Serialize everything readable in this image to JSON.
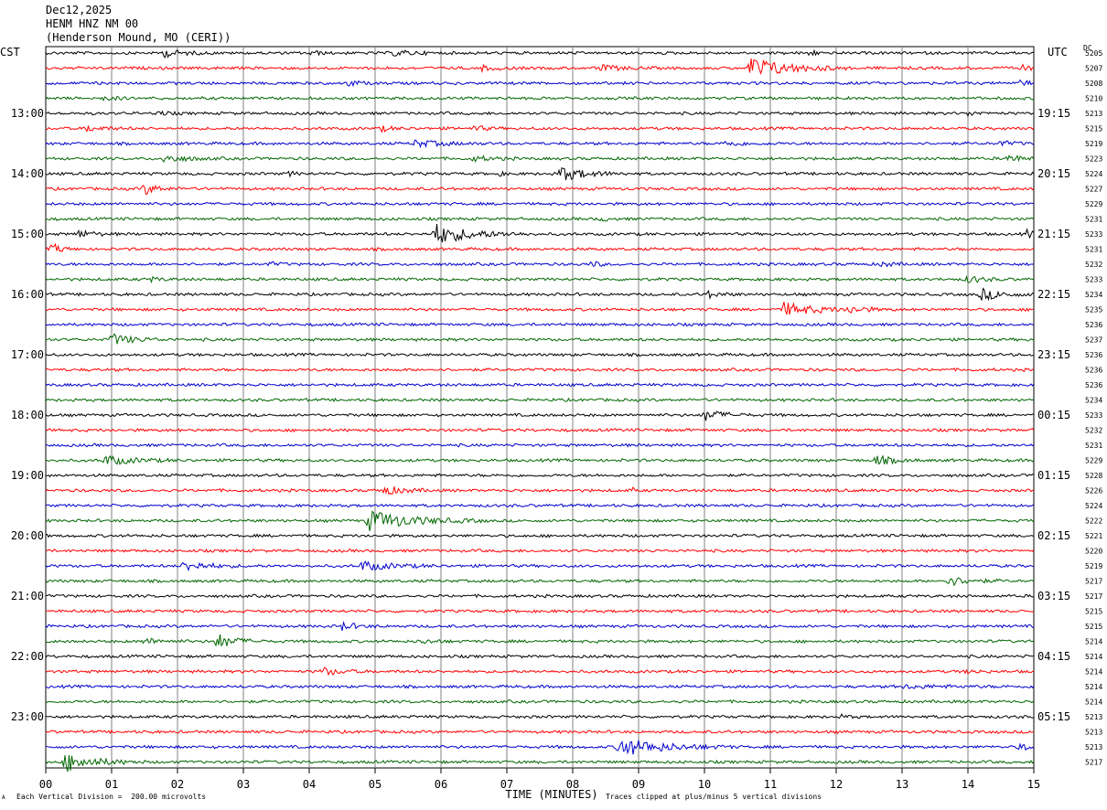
{
  "header": {
    "date": "Dec12,2025",
    "station": "HENM HNZ NM 00",
    "location": "(Henderson Mound, MO (CERI))"
  },
  "left_zone_label": "CST",
  "right_zone_label": "UTC",
  "dc_label": "DC",
  "footer": {
    "scale_note": "Each Vertical Division =  200.00 microvolts",
    "clip_note": "Traces clipped at plus/minus 5 vertical divisions",
    "corner_mark": "A"
  },
  "colors": {
    "black": "#000000",
    "red": "#ff0000",
    "blue": "#0000cc",
    "green": "#006600",
    "grid": "#808080"
  },
  "chart_data": {
    "type": "line",
    "xlabel": "TIME (MINUTES)",
    "x_ticks": [
      "00",
      "01",
      "02",
      "03",
      "04",
      "05",
      "06",
      "07",
      "08",
      "09",
      "10",
      "11",
      "12",
      "13",
      "14",
      "15"
    ],
    "xlim": [
      0,
      15
    ],
    "left_hour_labels": [
      "13:00",
      "14:00",
      "15:00",
      "16:00",
      "17:00",
      "18:00",
      "19:00",
      "20:00",
      "21:00",
      "22:00",
      "23:00"
    ],
    "right_hour_labels": [
      "19:15",
      "20:15",
      "21:15",
      "22:15",
      "23:15",
      "00:15",
      "01:15",
      "02:15",
      "03:15",
      "04:15",
      "05:15"
    ],
    "trace_colors": [
      "black",
      "red",
      "blue",
      "green"
    ],
    "dc_offsets": [
      "5205",
      "5207",
      "5208",
      "5210",
      "5213",
      "5215",
      "5219",
      "5223",
      "5224",
      "5227",
      "5229",
      "5231",
      "5233",
      "5231",
      "5232",
      "5233",
      "5234",
      "5235",
      "5236",
      "5237",
      "5236",
      "5236",
      "5236",
      "5234",
      "5233",
      "5232",
      "5231",
      "5229",
      "5228",
      "5226",
      "5224",
      "5222",
      "5221",
      "5220",
      "5219",
      "5217",
      "5217",
      "5215",
      "5215",
      "5214",
      "5214",
      "5214",
      "5214",
      "5214",
      "5213",
      "5213",
      "5213",
      "5217"
    ],
    "events": [
      {
        "trace": 0,
        "minute": 1.8,
        "amp": 4,
        "dur": 0.5
      },
      {
        "trace": 0,
        "minute": 5.3,
        "amp": 3,
        "dur": 0.5
      },
      {
        "trace": 0,
        "minute": 11.6,
        "amp": 3,
        "dur": 0.2
      },
      {
        "trace": 0,
        "minute": 4.0,
        "amp": 2.5,
        "dur": 0.3
      },
      {
        "trace": 1,
        "minute": 10.7,
        "amp": 12,
        "dur": 1.0
      },
      {
        "trace": 1,
        "minute": 8.4,
        "amp": 3,
        "dur": 0.6
      },
      {
        "trace": 1,
        "minute": 14.8,
        "amp": 3,
        "dur": 0.3
      },
      {
        "trace": 1,
        "minute": 6.6,
        "amp": 2.5,
        "dur": 0.5
      },
      {
        "trace": 2,
        "minute": 4.6,
        "amp": 3,
        "dur": 0.3
      },
      {
        "trace": 2,
        "minute": 14.8,
        "amp": 3,
        "dur": 0.3
      },
      {
        "trace": 3,
        "minute": 0.9,
        "amp": 2.5,
        "dur": 0.3
      },
      {
        "trace": 4,
        "minute": 1.7,
        "amp": 2,
        "dur": 0.3
      },
      {
        "trace": 4,
        "minute": 14.0,
        "amp": 2,
        "dur": 0.3
      },
      {
        "trace": 5,
        "minute": 0.6,
        "amp": 3,
        "dur": 0.5
      },
      {
        "trace": 5,
        "minute": 6.5,
        "amp": 3,
        "dur": 0.3
      },
      {
        "trace": 5,
        "minute": 5.1,
        "amp": 2.5,
        "dur": 0.3
      },
      {
        "trace": 6,
        "minute": 5.6,
        "amp": 3.5,
        "dur": 0.8
      },
      {
        "trace": 6,
        "minute": 10.3,
        "amp": 2.5,
        "dur": 0.6
      },
      {
        "trace": 6,
        "minute": 14.5,
        "amp": 2.5,
        "dur": 0.3
      },
      {
        "trace": 7,
        "minute": 1.8,
        "amp": 4,
        "dur": 0.6
      },
      {
        "trace": 7,
        "minute": 14.6,
        "amp": 4,
        "dur": 0.4
      },
      {
        "trace": 7,
        "minute": 6.5,
        "amp": 2.5,
        "dur": 0.5
      },
      {
        "trace": 8,
        "minute": 7.8,
        "amp": 8,
        "dur": 0.7
      },
      {
        "trace": 8,
        "minute": 3.7,
        "amp": 2,
        "dur": 0.2
      },
      {
        "trace": 8,
        "minute": 6.9,
        "amp": 2,
        "dur": 0.1
      },
      {
        "trace": 9,
        "minute": 1.5,
        "amp": 6,
        "dur": 0.4
      },
      {
        "trace": 11,
        "minute": 8.4,
        "amp": 2,
        "dur": 0.3
      },
      {
        "trace": 12,
        "minute": 5.9,
        "amp": 11,
        "dur": 1.0
      },
      {
        "trace": 12,
        "minute": 0.5,
        "amp": 4,
        "dur": 0.4
      },
      {
        "trace": 12,
        "minute": 14.9,
        "amp": 4,
        "dur": 0.2
      },
      {
        "trace": 13,
        "minute": 0.1,
        "amp": 5,
        "dur": 0.3
      },
      {
        "trace": 14,
        "minute": 8.3,
        "amp": 3,
        "dur": 0.2
      },
      {
        "trace": 14,
        "minute": 12.7,
        "amp": 2.5,
        "dur": 0.3
      },
      {
        "trace": 14,
        "minute": 3.4,
        "amp": 2,
        "dur": 0.2
      },
      {
        "trace": 15,
        "minute": 14.0,
        "amp": 4,
        "dur": 0.4
      },
      {
        "trace": 15,
        "minute": 1.6,
        "amp": 2,
        "dur": 0.3
      },
      {
        "trace": 16,
        "minute": 14.2,
        "amp": 6,
        "dur": 0.6
      },
      {
        "trace": 16,
        "minute": 10.0,
        "amp": 4,
        "dur": 0.4
      },
      {
        "trace": 17,
        "minute": 11.2,
        "amp": 7,
        "dur": 0.9
      },
      {
        "trace": 17,
        "minute": 12.2,
        "amp": 3,
        "dur": 0.5
      },
      {
        "trace": 19,
        "minute": 1.0,
        "amp": 6,
        "dur": 0.6
      },
      {
        "trace": 24,
        "minute": 10.0,
        "amp": 6,
        "dur": 0.5
      },
      {
        "trace": 27,
        "minute": 0.9,
        "amp": 5,
        "dur": 0.8
      },
      {
        "trace": 27,
        "minute": 12.6,
        "amp": 5,
        "dur": 0.5
      },
      {
        "trace": 29,
        "minute": 5.1,
        "amp": 5,
        "dur": 0.6
      },
      {
        "trace": 29,
        "minute": 8.9,
        "amp": 4,
        "dur": 0.05
      },
      {
        "trace": 31,
        "minute": 4.9,
        "amp": 11,
        "dur": 1.2
      },
      {
        "trace": 34,
        "minute": 2.1,
        "amp": 5,
        "dur": 0.7
      },
      {
        "trace": 34,
        "minute": 4.8,
        "amp": 5,
        "dur": 0.8
      },
      {
        "trace": 35,
        "minute": 13.7,
        "amp": 5,
        "dur": 0.6
      },
      {
        "trace": 38,
        "minute": 4.5,
        "amp": 4,
        "dur": 0.4
      },
      {
        "trace": 39,
        "minute": 2.6,
        "amp": 8,
        "dur": 0.5
      },
      {
        "trace": 39,
        "minute": 1.5,
        "amp": 3,
        "dur": 0.5
      },
      {
        "trace": 39,
        "minute": 5.7,
        "amp": 2,
        "dur": 0.4
      },
      {
        "trace": 41,
        "minute": 4.2,
        "amp": 4,
        "dur": 0.5
      },
      {
        "trace": 41,
        "minute": 14.0,
        "amp": 2,
        "dur": 0.3
      },
      {
        "trace": 42,
        "minute": 13.0,
        "amp": 1.5,
        "dur": 1.5
      },
      {
        "trace": 44,
        "minute": 12.1,
        "amp": 2,
        "dur": 0.2
      },
      {
        "trace": 46,
        "minute": 8.7,
        "amp": 10,
        "dur": 1.2
      },
      {
        "trace": 46,
        "minute": 14.8,
        "amp": 4,
        "dur": 0.4
      },
      {
        "trace": 47,
        "minute": 0.3,
        "amp": 10,
        "dur": 0.8
      }
    ]
  }
}
